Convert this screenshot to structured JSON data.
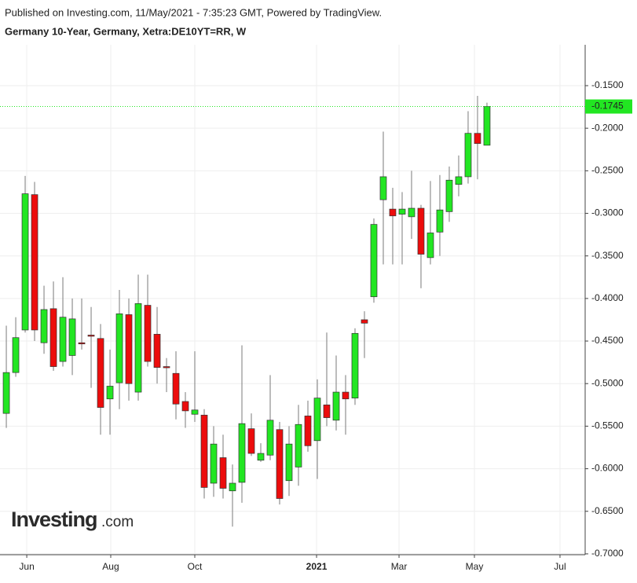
{
  "header": {
    "published": "Published on Investing.com, 11/May/2021 - 7:35:23 GMT, Powered by TradingView.",
    "symbol": "Germany 10-Year, Germany, Xetra:DE10YT=RR, W"
  },
  "watermark": {
    "brand": "Investing",
    "suffix": ".com"
  },
  "chart_data": {
    "type": "candlestick",
    "categories": [
      null,
      null,
      null,
      null,
      null,
      null,
      null,
      null,
      null,
      null,
      null,
      null,
      null,
      null,
      null,
      null,
      null,
      null,
      null,
      null,
      null,
      null,
      null,
      null,
      null,
      null,
      null,
      null,
      null,
      null,
      null,
      null,
      null,
      null,
      null,
      null,
      null,
      null,
      null,
      null,
      null,
      null,
      null,
      null,
      null,
      null,
      null,
      null,
      null,
      null,
      null,
      null
    ],
    "open": [
      -0.535,
      -0.487,
      -0.437,
      -0.278,
      -0.452,
      -0.412,
      -0.474,
      -0.467,
      -0.452,
      -0.443,
      -0.447,
      -0.518,
      -0.499,
      -0.419,
      -0.51,
      -0.408,
      -0.442,
      -0.48,
      -0.488,
      -0.521,
      -0.536,
      -0.537,
      -0.617,
      -0.587,
      -0.626,
      -0.616,
      -0.553,
      -0.59,
      -0.584,
      -0.554,
      -0.614,
      -0.598,
      -0.538,
      -0.567,
      -0.525,
      -0.543,
      -0.51,
      -0.517,
      -0.425,
      -0.398,
      -0.284,
      -0.295,
      -0.301,
      -0.304,
      -0.294,
      -0.352,
      -0.322,
      -0.298,
      -0.266,
      -0.257,
      -0.206,
      -0.22
    ],
    "high": [
      -0.432,
      -0.422,
      -0.256,
      -0.263,
      -0.385,
      -0.38,
      -0.375,
      -0.4,
      -0.4,
      -0.41,
      -0.43,
      -0.46,
      -0.39,
      -0.4,
      -0.372,
      -0.372,
      -0.41,
      -0.47,
      -0.462,
      -0.51,
      -0.462,
      -0.53,
      -0.55,
      -0.56,
      -0.595,
      -0.455,
      -0.535,
      -0.57,
      -0.49,
      -0.545,
      -0.55,
      -0.525,
      -0.52,
      -0.495,
      -0.44,
      -0.467,
      -0.49,
      -0.435,
      -0.415,
      -0.306,
      -0.204,
      -0.27,
      -0.275,
      -0.25,
      -0.29,
      -0.262,
      -0.255,
      -0.245,
      -0.232,
      -0.18,
      -0.162,
      -0.17
    ],
    "low": [
      -0.552,
      -0.492,
      -0.44,
      -0.45,
      -0.465,
      -0.485,
      -0.48,
      -0.49,
      -0.46,
      -0.505,
      -0.56,
      -0.56,
      -0.53,
      -0.52,
      -0.52,
      -0.48,
      -0.5,
      -0.51,
      -0.542,
      -0.552,
      -0.545,
      -0.635,
      -0.633,
      -0.635,
      -0.668,
      -0.64,
      -0.585,
      -0.592,
      -0.59,
      -0.642,
      -0.632,
      -0.62,
      -0.58,
      -0.612,
      -0.55,
      -0.555,
      -0.56,
      -0.525,
      -0.47,
      -0.405,
      -0.36,
      -0.36,
      -0.36,
      -0.33,
      -0.388,
      -0.36,
      -0.35,
      -0.31,
      -0.28,
      -0.265,
      -0.26,
      -0.22
    ],
    "close": [
      -0.487,
      -0.446,
      -0.277,
      -0.437,
      -0.413,
      -0.48,
      -0.422,
      -0.424,
      -0.453,
      -0.444,
      -0.528,
      -0.503,
      -0.418,
      -0.5,
      -0.406,
      -0.474,
      -0.481,
      -0.481,
      -0.524,
      -0.532,
      -0.531,
      -0.622,
      -0.571,
      -0.623,
      -0.617,
      -0.547,
      -0.582,
      -0.582,
      -0.543,
      -0.635,
      -0.571,
      -0.548,
      -0.573,
      -0.517,
      -0.54,
      -0.51,
      -0.518,
      -0.441,
      -0.429,
      -0.313,
      -0.257,
      -0.303,
      -0.295,
      -0.294,
      -0.348,
      -0.323,
      -0.296,
      -0.261,
      -0.257,
      -0.206,
      -0.218,
      -0.1745
    ],
    "up_color": "#22e622",
    "down_color": "#ec0c0c",
    "wick_color": "#7a7a7a",
    "price_line": -0.1745,
    "price_line_color": "#22e622",
    "ylim": [
      -0.701,
      -0.102
    ],
    "yticks": [
      {
        "value": -0.15,
        "label": "-0.1500"
      },
      {
        "value": -0.2,
        "label": "-0.2000"
      },
      {
        "value": -0.25,
        "label": "-0.2500"
      },
      {
        "value": -0.3,
        "label": "-0.3000"
      },
      {
        "value": -0.35,
        "label": "-0.3500"
      },
      {
        "value": -0.4,
        "label": "-0.4000"
      },
      {
        "value": -0.45,
        "label": "-0.4500"
      },
      {
        "value": -0.5,
        "label": "-0.5000"
      },
      {
        "value": -0.55,
        "label": "-0.5500"
      },
      {
        "value": -0.6,
        "label": "-0.6000"
      },
      {
        "value": -0.65,
        "label": "-0.6500"
      },
      {
        "value": -0.7,
        "label": "-0.7000"
      }
    ],
    "xlim": [
      -0.67,
      61.42
    ],
    "xticks": [
      {
        "value": 2.17,
        "label": "Jun"
      },
      {
        "value": 11.08,
        "label": "Aug"
      },
      {
        "value": 20,
        "label": "Oct"
      },
      {
        "value": 32.92,
        "label": "2021",
        "bold": true
      },
      {
        "value": 41.67,
        "label": "Mar"
      },
      {
        "value": 49.67,
        "label": "May"
      },
      {
        "value": 58.75,
        "label": "Jul"
      }
    ],
    "grid": true
  }
}
